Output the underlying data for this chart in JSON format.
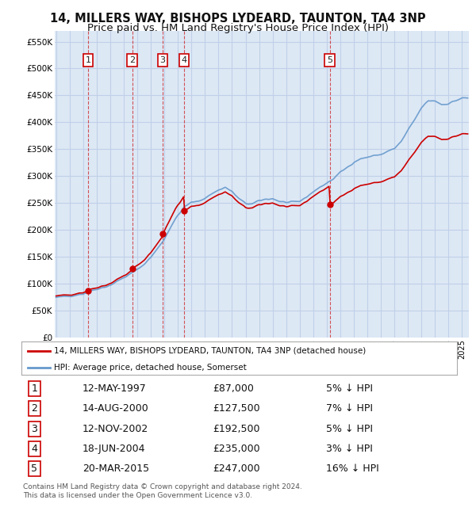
{
  "title": "14, MILLERS WAY, BISHOPS LYDEARD, TAUNTON, TA4 3NP",
  "subtitle": "Price paid vs. HM Land Registry's House Price Index (HPI)",
  "ylabel_ticks": [
    "£0",
    "£50K",
    "£100K",
    "£150K",
    "£200K",
    "£250K",
    "£300K",
    "£350K",
    "£400K",
    "£450K",
    "£500K",
    "£550K"
  ],
  "ytick_values": [
    0,
    50000,
    100000,
    150000,
    200000,
    250000,
    300000,
    350000,
    400000,
    450000,
    500000,
    550000
  ],
  "ylim": [
    0,
    570000
  ],
  "xlim_start": 1994.9,
  "xlim_end": 2025.5,
  "sales": [
    {
      "label": 1,
      "date": 1997.36,
      "price": 87000
    },
    {
      "label": 2,
      "date": 2000.62,
      "price": 127500
    },
    {
      "label": 3,
      "date": 2002.87,
      "price": 192500
    },
    {
      "label": 4,
      "date": 2004.46,
      "price": 235000
    },
    {
      "label": 5,
      "date": 2015.22,
      "price": 247000
    }
  ],
  "sale_color": "#cc0000",
  "hpi_color": "#6699cc",
  "legend_entries": [
    "14, MILLERS WAY, BISHOPS LYDEARD, TAUNTON, TA4 3NP (detached house)",
    "HPI: Average price, detached house, Somerset"
  ],
  "table_rows": [
    [
      "1",
      "12-MAY-1997",
      "£87,000",
      "5% ↓ HPI"
    ],
    [
      "2",
      "14-AUG-2000",
      "£127,500",
      "7% ↓ HPI"
    ],
    [
      "3",
      "12-NOV-2002",
      "£192,500",
      "5% ↓ HPI"
    ],
    [
      "4",
      "18-JUN-2004",
      "£235,000",
      "3% ↓ HPI"
    ],
    [
      "5",
      "20-MAR-2015",
      "£247,000",
      "16% ↓ HPI"
    ]
  ],
  "footnote": "Contains HM Land Registry data © Crown copyright and database right 2024.\nThis data is licensed under the Open Government Licence v3.0.",
  "background_color": "#dde8f5",
  "grid_color": "#c0d0e8",
  "title_fontsize": 10.5,
  "subtitle_fontsize": 9.5
}
